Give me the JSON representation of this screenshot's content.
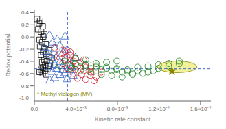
{
  "chart_data": {
    "type": "scatter",
    "xlabel": "Kinetic rate constant",
    "ylabel": "Redox potential",
    "xlim": [
      0,
      0.017
    ],
    "ylim": [
      -1.05,
      0.45
    ],
    "xticks": [
      {
        "value": 0.0,
        "label": "0.0"
      },
      {
        "value": 0.004,
        "label": "4.0×10⁻³"
      },
      {
        "value": 0.008,
        "label": "8.0×10⁻³"
      },
      {
        "value": 0.012,
        "label": "1.2×10⁻²"
      },
      {
        "value": 0.016,
        "label": "1.6×10⁻²"
      }
    ],
    "yticks": [
      {
        "value": -1.0,
        "label": "-1.0"
      },
      {
        "value": -0.8,
        "label": "-0.8"
      },
      {
        "value": -0.6,
        "label": "-0.6"
      },
      {
        "value": -0.4,
        "label": "-0.4"
      },
      {
        "value": -0.2,
        "label": "-0.2"
      },
      {
        "value": 0.0,
        "label": "0.0"
      },
      {
        "value": 0.2,
        "label": "0.2"
      },
      {
        "value": 0.4,
        "label": "0.4"
      }
    ],
    "grid": false,
    "hline": {
      "y": -0.52,
      "color": "#4466DD"
    },
    "vline": {
      "x": 0.0032,
      "color": "#4466DD"
    },
    "ellipse": {
      "cx": 0.01375,
      "cy": -0.49,
      "width": 0.0038,
      "height": 0.19,
      "color": "#EEEE88",
      "edge_color": "#888800"
    },
    "annotation": {
      "text": "* Methyl viologen (MV)",
      "color": "#888800"
    },
    "series": [
      {
        "color": "#000000",
        "marker": "square",
        "x": [
          0.00025,
          0.00055,
          0.00045,
          0.0008,
          0.00035,
          0.00065,
          0.00095,
          0.00085,
          0.0005,
          0.00075,
          0.0011,
          0.00055,
          0.00095,
          0.0014,
          0.00085,
          0.00115,
          0.00065,
          0.0014,
          0.0017,
          0.00095,
          0.0012,
          0.00075,
          0.0015,
          0.00105,
          0.00135,
          0.00085,
          0.00115,
          0.00065,
          0.001,
          0.0005,
          0.0008,
          0.00115
        ],
        "values": [
          0.295,
          0.265,
          0.225,
          0.175,
          0.125,
          0.085,
          0.045,
          0.005,
          -0.045,
          -0.085,
          -0.115,
          -0.155,
          -0.185,
          -0.215,
          -0.245,
          -0.275,
          -0.295,
          -0.325,
          -0.345,
          -0.375,
          -0.395,
          -0.415,
          -0.435,
          -0.455,
          -0.475,
          -0.495,
          -0.515,
          -0.535,
          -0.555,
          -0.575,
          -0.595,
          -0.615
        ]
      },
      {
        "color": "#3060C0",
        "marker": "triangle",
        "x": [
          0.00145,
          0.0022,
          0.00295,
          0.00175,
          0.00245,
          0.00195,
          0.00315,
          0.00275,
          0.0015,
          0.00215,
          0.00295,
          0.00175,
          0.00245,
          0.00325,
          0.00195,
          0.00275,
          0.0015,
          0.00215,
          0.00345,
          0.00175,
          0.00295,
          0.00245,
          0.00375,
          0.00195,
          0.00315,
          0.0015,
          0.00275,
          0.00355,
          0.00395,
          0.00115,
          0.00095
        ],
        "values": [
          0.025,
          -0.045,
          0.005,
          -0.095,
          -0.145,
          -0.195,
          -0.215,
          -0.255,
          -0.295,
          -0.325,
          -0.355,
          -0.385,
          -0.415,
          -0.435,
          -0.455,
          -0.475,
          -0.495,
          -0.525,
          -0.545,
          -0.575,
          -0.595,
          -0.625,
          -0.645,
          -0.675,
          -0.695,
          -0.715,
          -0.545,
          -0.495,
          -0.345,
          -0.245,
          -0.175
        ]
      },
      {
        "color": "#CC1020",
        "marker": "circle",
        "x": [
          0.00195,
          0.00275,
          0.00345,
          0.00245,
          0.00315,
          0.00395,
          0.00295,
          0.00375,
          0.00445,
          0.00275,
          0.00345,
          0.00415,
          0.00495,
          0.00315,
          0.00395,
          0.00475,
          0.00545,
          0.00375,
          0.00455,
          0.00535,
          0.00595,
          0.00415,
          0.00495,
          0.00575,
          0.00645,
          0.00545,
          0.00475,
          0.00245,
          0.00345,
          0.00295
        ],
        "values": [
          -0.175,
          -0.215,
          -0.245,
          -0.275,
          -0.315,
          -0.345,
          -0.375,
          -0.395,
          -0.415,
          -0.435,
          -0.455,
          -0.475,
          -0.495,
          -0.515,
          -0.535,
          -0.555,
          -0.575,
          -0.595,
          -0.615,
          -0.635,
          -0.655,
          -0.675,
          -0.695,
          -0.715,
          -0.575,
          -0.475,
          -0.375,
          -0.345,
          -0.295,
          -0.235
        ]
      },
      {
        "color": "#1A8020",
        "marker": "circle",
        "x": [
          0.00295,
          0.00395,
          0.00495,
          0.00595,
          0.00695,
          0.00795,
          0.00895,
          0.00345,
          0.00445,
          0.00545,
          0.00645,
          0.00745,
          0.00845,
          0.00945,
          0.00395,
          0.00495,
          0.00595,
          0.00695,
          0.00795,
          0.00895,
          0.00995,
          0.01095,
          0.01195,
          0.01295,
          0.01395,
          0.00545,
          0.00645,
          0.00745,
          0.00845,
          0.00445,
          0.00945,
          0.01045,
          0.01145,
          0.00345,
          0.00245,
          0.00595,
          0.00695,
          0.00795,
          0.00495,
          0.00395,
          0.00995,
          0.01095,
          0.01195,
          0.01295,
          0.01395
        ],
        "values": [
          -0.395,
          -0.435,
          -0.465,
          -0.495,
          -0.515,
          -0.535,
          -0.555,
          -0.475,
          -0.495,
          -0.515,
          -0.535,
          -0.555,
          -0.575,
          -0.595,
          -0.435,
          -0.455,
          -0.475,
          -0.495,
          -0.515,
          -0.535,
          -0.555,
          -0.575,
          -0.515,
          -0.475,
          -0.435,
          -0.595,
          -0.615,
          -0.635,
          -0.655,
          -0.555,
          -0.615,
          -0.595,
          -0.555,
          -0.515,
          -0.475,
          -0.435,
          -0.415,
          -0.395,
          -0.375,
          -0.355,
          -0.495,
          -0.475,
          -0.455,
          -0.435,
          -0.395
        ]
      },
      {
        "color": "#888800",
        "marker": "star",
        "x": [
          0.01325
        ],
        "values": [
          -0.555
        ]
      }
    ]
  }
}
